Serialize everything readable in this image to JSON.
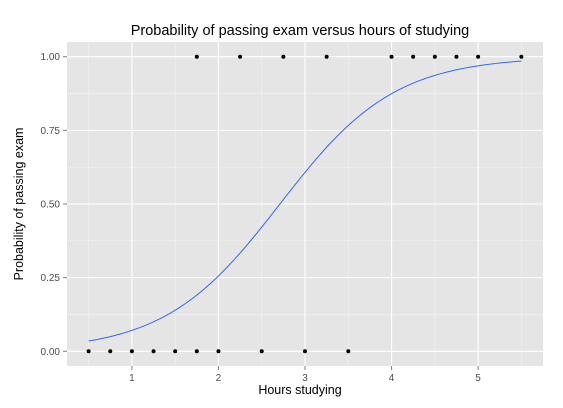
{
  "chart_data": {
    "type": "scatter",
    "title": "Probability of passing exam versus hours of studying",
    "xlabel": "Hours studying",
    "ylabel": "Probability of passing exam",
    "xlim": [
      0.25,
      5.75
    ],
    "ylim": [
      -0.05,
      1.05
    ],
    "x_ticks": [
      1,
      2,
      3,
      4,
      5
    ],
    "x_tick_labels": [
      "1",
      "2",
      "3",
      "4",
      "5"
    ],
    "y_ticks": [
      0,
      0.25,
      0.5,
      0.75,
      1
    ],
    "y_tick_labels": [
      "0.00",
      "0.25",
      "0.50",
      "0.75",
      "1.00"
    ],
    "grid": true,
    "colors": {
      "panel": "#e5e5e5",
      "points": "#000000",
      "curve": "#3366ff"
    },
    "points": {
      "x": [
        0.5,
        0.75,
        1.0,
        1.25,
        1.5,
        1.75,
        1.75,
        2.0,
        2.25,
        2.5,
        2.75,
        3.0,
        3.25,
        3.5,
        4.0,
        4.25,
        4.5,
        4.75,
        5.0,
        5.5
      ],
      "y": [
        0,
        0,
        0,
        0,
        0,
        0,
        1,
        0,
        1,
        0,
        1,
        0,
        1,
        0,
        1,
        1,
        1,
        1,
        1,
        1
      ]
    },
    "fit_curve": {
      "type": "logistic",
      "intercept": -4.0777,
      "slope": 1.5046,
      "x_range": [
        0.5,
        5.5
      ]
    }
  }
}
